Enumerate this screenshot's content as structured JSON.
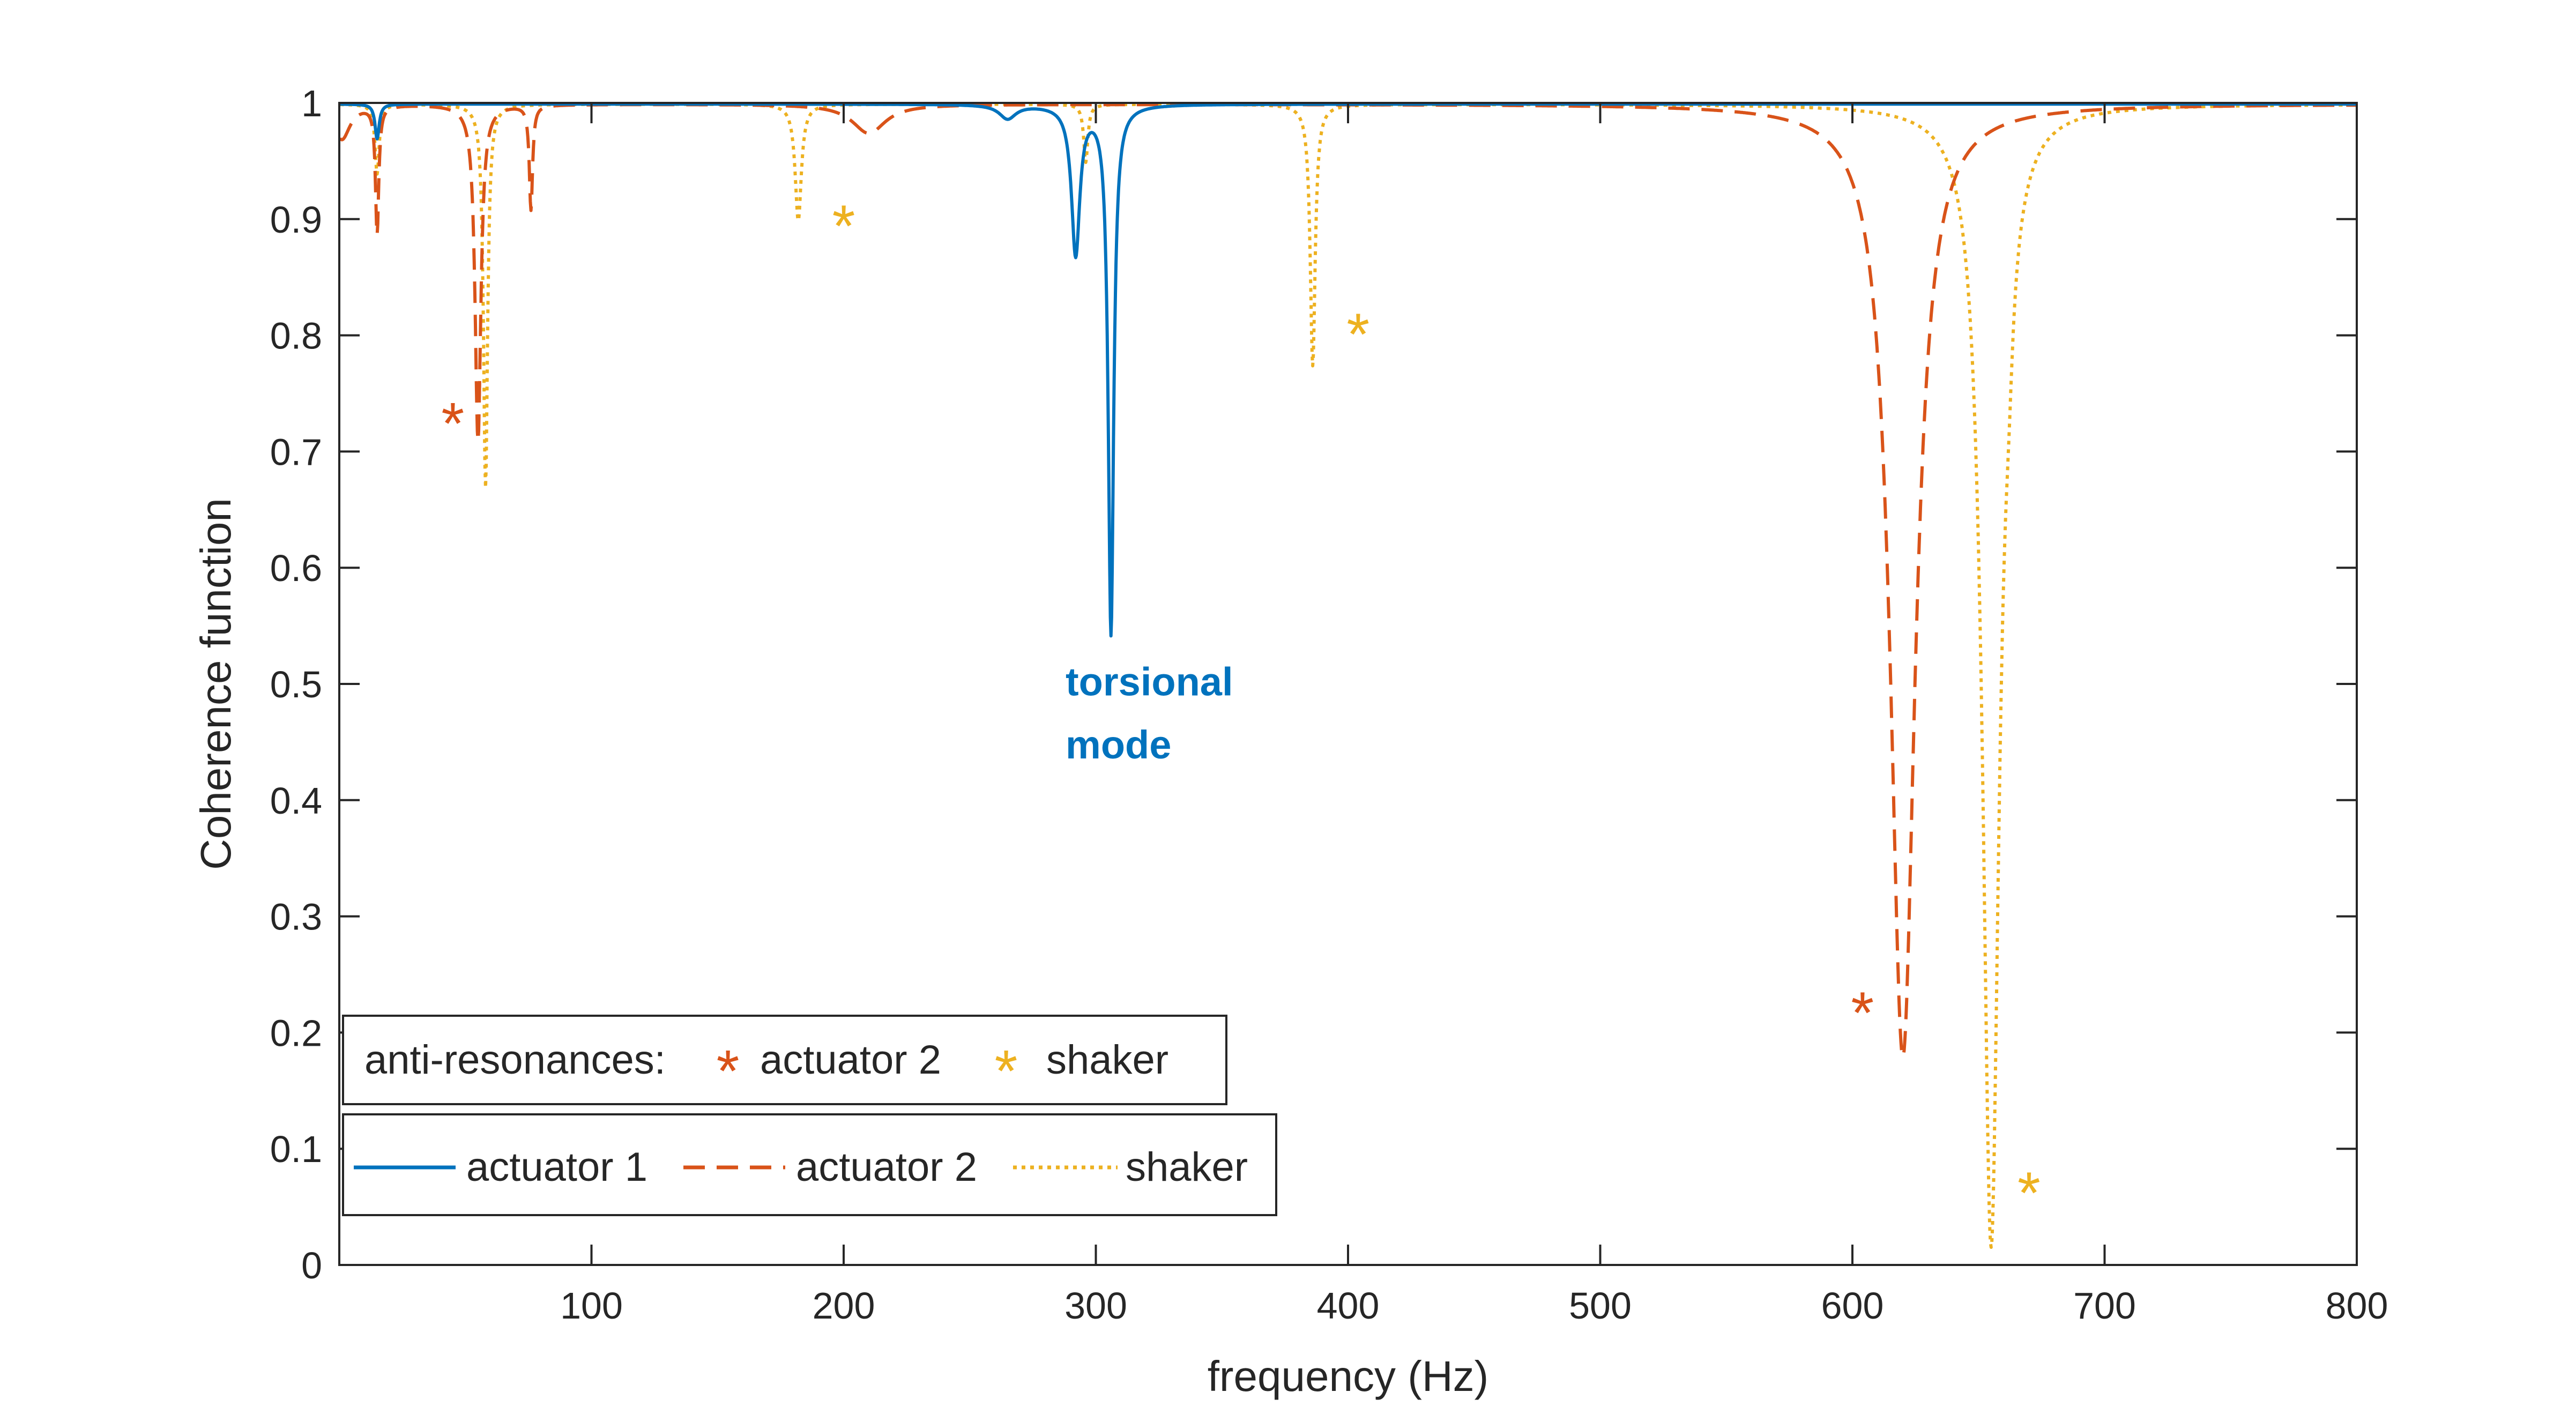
{
  "chart_data": {
    "type": "line",
    "xlabel": "frequency (Hz)",
    "ylabel": "Coherence function",
    "xlim": [
      0,
      800
    ],
    "ylim": [
      0,
      1
    ],
    "xticks": [
      100,
      200,
      300,
      400,
      500,
      600,
      700,
      800
    ],
    "yticks": [
      0,
      0.1,
      0.2,
      0.3,
      0.4,
      0.5,
      0.6,
      0.7,
      0.8,
      0.9,
      1
    ],
    "ytick_labels": [
      "0",
      "0.1",
      "0.2",
      "0.3",
      "0.4",
      "0.5",
      "0.6",
      "0.7",
      "0.8",
      "0.9",
      "1"
    ],
    "grid": false,
    "series": [
      {
        "name": "actuator 1",
        "color": "#0072BD",
        "style": "solid",
        "dips": [
          {
            "f": 15,
            "depth": 0.03,
            "width": 1.0
          },
          {
            "f": 265,
            "depth": 0.012,
            "width": 4
          },
          {
            "f": 292,
            "depth": 0.128,
            "width": 2.0
          },
          {
            "f": 306,
            "depth": 0.455,
            "width": 1.3
          }
        ]
      },
      {
        "name": "actuator 2",
        "color": "#D95319",
        "style": "dashed",
        "dips": [
          {
            "f": 1,
            "depth": 0.03,
            "width": 4
          },
          {
            "f": 15,
            "depth": 0.11,
            "width": 0.8
          },
          {
            "f": 55,
            "depth": 0.29,
            "width": 1.4
          },
          {
            "f": 76,
            "depth": 0.09,
            "width": 0.8
          },
          {
            "f": 210,
            "depth": 0.025,
            "width": 8
          },
          {
            "f": 620,
            "depth": 0.82,
            "width": 6
          }
        ]
      },
      {
        "name": "shaker",
        "color": "#EDB120",
        "style": "dotted",
        "dips": [
          {
            "f": 15,
            "depth": 0.06,
            "width": 1.0
          },
          {
            "f": 58,
            "depth": 0.33,
            "width": 1.0
          },
          {
            "f": 182,
            "depth": 0.1,
            "width": 1.5
          },
          {
            "f": 296,
            "depth": 0.05,
            "width": 1.0
          },
          {
            "f": 386,
            "depth": 0.225,
            "width": 1.2
          },
          {
            "f": 655,
            "depth": 0.98,
            "width": 4
          },
          {
            "f": 662,
            "depth": 0.05,
            "width": 2
          }
        ]
      }
    ],
    "anti_resonances": [
      {
        "series": "actuator 2",
        "f": 45,
        "c": 0.725
      },
      {
        "series": "shaker",
        "f": 200,
        "c": 0.895
      },
      {
        "series": "shaker",
        "f": 404,
        "c": 0.802
      },
      {
        "series": "actuator 2",
        "f": 604,
        "c": 0.218
      },
      {
        "series": "shaker",
        "f": 670,
        "c": 0.063
      }
    ],
    "annotations": [
      {
        "text": "torsional",
        "f": 288,
        "c": 0.49,
        "color": "#0072BD"
      },
      {
        "text": "mode",
        "f": 288,
        "c": 0.436,
        "color": "#0072BD"
      }
    ],
    "legends": {
      "anti_resonance_label": "anti-resonances:",
      "anti_resonance_items": [
        "actuator 2",
        "shaker"
      ],
      "placement": "bottom-left"
    }
  }
}
